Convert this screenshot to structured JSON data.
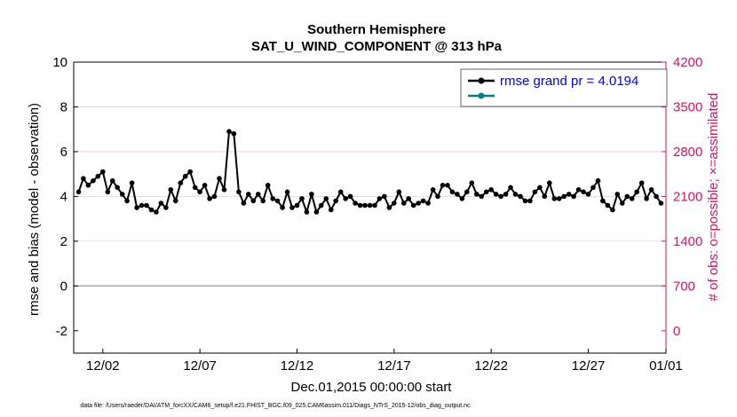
{
  "chart_data": {
    "type": "line",
    "title": "Southern Hemisphere",
    "subtitle": "SAT_U_WIND_COMPONENT @ 313 hPa",
    "xlabel": "Dec.01,2015 00:00:00 start",
    "ylabel": "rmse and bias (model - observation)",
    "y2label": "# of obs: o=possible; ×=assimilated",
    "footnote": "data file: /Users/raeder/DAI/ATM_forcXX/CAM6_setup/f.e21.FHIST_BGC.f09_025.CAM6assim.011/Diags_NTrS_2015-12/obs_diag_output.nc",
    "xlim": [
      0.5,
      31.0
    ],
    "ylim": [
      -3,
      10
    ],
    "y2lim": [
      -350,
      4200
    ],
    "xticks": [
      2,
      7,
      12,
      17,
      22,
      27,
      31
    ],
    "xtick_labels": [
      "12/02",
      "12/07",
      "12/12",
      "12/17",
      "12/22",
      "12/27",
      "01/01"
    ],
    "yticks": [
      -2,
      0,
      2,
      4,
      6,
      8,
      10
    ],
    "ytick_labels": [
      "-2",
      "0",
      "2",
      "4",
      "6",
      "8",
      "10"
    ],
    "y2ticks": [
      0,
      700,
      1400,
      2100,
      2800,
      3500,
      4200
    ],
    "y2tick_labels": [
      "0",
      "700",
      "1400",
      "2100",
      "2800",
      "3500",
      "4200"
    ],
    "zero_line": 0,
    "legend_position": "top-right",
    "colors": {
      "rmse": "#000000",
      "bias": "#008080",
      "obs": "#e0105a",
      "zero": "#aaaaaa",
      "grid": "#f0c8d6"
    },
    "x": [
      0.75,
      1.0,
      1.25,
      1.5,
      1.75,
      2.0,
      2.25,
      2.5,
      2.75,
      3.0,
      3.25,
      3.5,
      3.75,
      4.0,
      4.25,
      4.5,
      4.75,
      5.0,
      5.25,
      5.5,
      5.75,
      6.0,
      6.25,
      6.5,
      6.75,
      7.0,
      7.25,
      7.5,
      7.75,
      8.0,
      8.25,
      8.5,
      8.75,
      9.0,
      9.25,
      9.5,
      9.75,
      10.0,
      10.25,
      10.5,
      10.75,
      11.0,
      11.25,
      11.5,
      11.75,
      12.0,
      12.25,
      12.5,
      12.75,
      13.0,
      13.25,
      13.5,
      13.75,
      14.0,
      14.25,
      14.5,
      14.75,
      15.0,
      15.25,
      15.5,
      15.75,
      16.0,
      16.25,
      16.5,
      16.75,
      17.0,
      17.25,
      17.5,
      17.75,
      18.0,
      18.25,
      18.5,
      18.75,
      19.0,
      19.25,
      19.5,
      19.75,
      20.0,
      20.25,
      20.5,
      20.75,
      21.0,
      21.25,
      21.5,
      21.75,
      22.0,
      22.25,
      22.5,
      22.75,
      23.0,
      23.25,
      23.5,
      23.75,
      24.0,
      24.25,
      24.5,
      24.75,
      25.0,
      25.25,
      25.5,
      25.75,
      26.0,
      26.25,
      26.5,
      26.75,
      27.0,
      27.25,
      27.5,
      27.75,
      28.0,
      28.25,
      28.5,
      28.75,
      29.0,
      29.25,
      29.5,
      29.75,
      30.0,
      30.25,
      30.5,
      30.75
    ],
    "series": [
      {
        "name": "rmse grand pr = 4.0194",
        "marker": "dot",
        "values": [
          4.2,
          4.8,
          4.5,
          4.7,
          4.9,
          5.1,
          4.2,
          4.7,
          4.4,
          4.1,
          3.8,
          4.6,
          3.5,
          3.6,
          3.6,
          3.4,
          3.3,
          3.7,
          3.5,
          4.3,
          3.8,
          4.6,
          4.9,
          5.1,
          4.4,
          4.2,
          4.5,
          3.9,
          4.0,
          4.8,
          4.3,
          6.9,
          6.8,
          4.2,
          3.7,
          4.1,
          3.8,
          4.1,
          3.8,
          4.5,
          3.9,
          3.8,
          3.5,
          4.2,
          3.5,
          3.6,
          3.9,
          3.3,
          4.1,
          3.3,
          3.6,
          3.9,
          3.4,
          3.8,
          4.2,
          3.9,
          4.0,
          3.7,
          3.6,
          3.6,
          3.6,
          3.6,
          3.9,
          4.0,
          3.5,
          3.7,
          4.2,
          3.7,
          3.9,
          3.6,
          3.7,
          3.8,
          3.7,
          4.3,
          4.0,
          4.5,
          4.5,
          4.2,
          4.1,
          3.9,
          4.2,
          4.6,
          4.1,
          4.0,
          4.2,
          4.3,
          4.1,
          4.0,
          4.1,
          4.4,
          4.1,
          4.0,
          3.8,
          3.8,
          4.2,
          4.4,
          4.0,
          4.6,
          3.9,
          3.9,
          4.0,
          4.1,
          4.0,
          4.3,
          4.2,
          4.1,
          4.4,
          4.7,
          3.8,
          3.6,
          3.4,
          4.1,
          3.7,
          4.0,
          3.9,
          4.2,
          4.6,
          3.9,
          4.3,
          4.0,
          3.7
        ],
        "y_values_fix": [],
        "y_values": [
          4.2,
          4.8,
          4.5,
          4.7,
          4.9,
          5.1,
          4.2,
          4.7,
          4.4,
          4.1,
          3.8,
          4.6,
          3.5,
          3.6,
          3.6,
          3.4,
          3.3,
          3.7,
          3.5,
          4.3,
          3.8,
          4.6,
          4.9,
          5.1,
          4.4,
          4.2,
          4.5,
          3.9,
          4.0,
          4.8,
          4.3,
          6.9,
          6.8,
          4.2,
          3.7,
          4.1,
          3.8,
          4.1,
          3.8,
          4.5,
          3.9,
          3.8,
          3.5,
          4.2,
          3.5,
          3.6,
          3.9,
          3.3,
          4.1,
          3.3,
          3.6,
          3.9,
          3.4,
          3.8,
          4.2,
          3.9,
          4.0,
          3.7,
          3.6,
          3.6,
          3.6,
          3.6,
          3.9,
          4.0,
          3.5,
          3.7,
          4.2,
          3.7,
          3.9,
          3.6,
          3.7,
          3.8,
          3.7,
          4.3,
          4.0,
          4.5,
          4.5,
          4.2,
          4.1,
          3.9,
          4.2,
          4.6,
          4.1,
          4.0,
          4.2,
          4.3,
          4.1,
          4.0,
          4.1,
          4.4,
          4.1,
          4.0,
          3.8,
          3.8,
          4.2,
          4.4,
          4.0,
          4.6,
          3.9,
          3.9,
          4.0,
          4.1,
          4.0,
          4.3,
          4.2,
          4.1,
          4.4,
          4.7,
          3.8,
          3.6,
          3.4,
          4.1,
          3.7,
          4.0,
          3.9,
          4.2,
          4.6,
          3.9,
          4.3,
          4.0,
          3.7
        ]
      }
    ]
  }
}
